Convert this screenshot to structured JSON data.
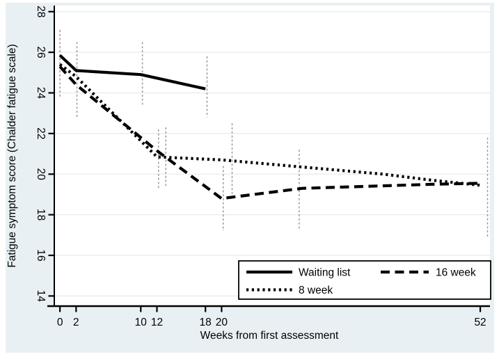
{
  "figure": {
    "outer_background": "#ffffff",
    "figure_background": "#e9f0f3",
    "plot_background": "#ffffff",
    "grid_color": "#e2ecee",
    "axis_color": "#000000",
    "line_color": "#000000",
    "error_bar_color": "#9b9b9b",
    "legend_background": "#ffffff",
    "legend_border": "#000000"
  },
  "chart_data": {
    "type": "line",
    "title": "",
    "xlabel": "Weeks from first assessment",
    "ylabel": "Fatigue symptom score (Chalder fatigue scale)",
    "xticks": [
      0,
      2,
      10,
      12,
      18,
      20,
      52
    ],
    "yticks": [
      14,
      16,
      18,
      20,
      22,
      24,
      26,
      28
    ],
    "xlim": [
      -0.7,
      53.2
    ],
    "ylim": [
      13.5,
      28.3
    ],
    "grid": true,
    "legend_position": "bottom-right",
    "legend": [
      {
        "label": "Waiting list",
        "style": "solid"
      },
      {
        "label": "16 week",
        "style": "dashed"
      },
      {
        "label": "8 week",
        "style": "dotted"
      }
    ],
    "series": [
      {
        "name": "Waiting list",
        "style": "solid",
        "points": [
          [
            0,
            25.85
          ],
          [
            2,
            25.1
          ],
          [
            10,
            24.9
          ],
          [
            18,
            24.2
          ]
        ]
      },
      {
        "name": "16 week",
        "style": "dashed",
        "points": [
          [
            0,
            25.3
          ],
          [
            2,
            24.4
          ],
          [
            12,
            21.15
          ],
          [
            20,
            18.8
          ],
          [
            30,
            19.3
          ],
          [
            46,
            19.5
          ],
          [
            52,
            19.55
          ]
        ]
      },
      {
        "name": "8 week",
        "style": "dotted",
        "points": [
          [
            0,
            25.4
          ],
          [
            2,
            24.8
          ],
          [
            12,
            20.85
          ],
          [
            20,
            20.7
          ],
          [
            30,
            20.35
          ],
          [
            40,
            20.0
          ],
          [
            46,
            19.7
          ],
          [
            52,
            19.45
          ]
        ]
      }
    ],
    "error_bars": [
      {
        "x": 0,
        "lo": 23.8,
        "hi": 27.1
      },
      {
        "x": 2.1,
        "lo": 22.8,
        "hi": 26.5
      },
      {
        "x": 10.2,
        "lo": 23.4,
        "hi": 26.5
      },
      {
        "x": 12.2,
        "lo": 19.3,
        "hi": 22.2
      },
      {
        "x": 13.1,
        "lo": 19.4,
        "hi": 22.3
      },
      {
        "x": 18.2,
        "lo": 22.8,
        "hi": 25.8
      },
      {
        "x": 20.2,
        "lo": 17.2,
        "hi": 20.4
      },
      {
        "x": 21.3,
        "lo": 19.0,
        "hi": 22.5
      },
      {
        "x": 29.6,
        "lo": 17.3,
        "hi": 21.2
      },
      {
        "x": 52.9,
        "lo": 16.9,
        "hi": 21.8
      }
    ]
  }
}
